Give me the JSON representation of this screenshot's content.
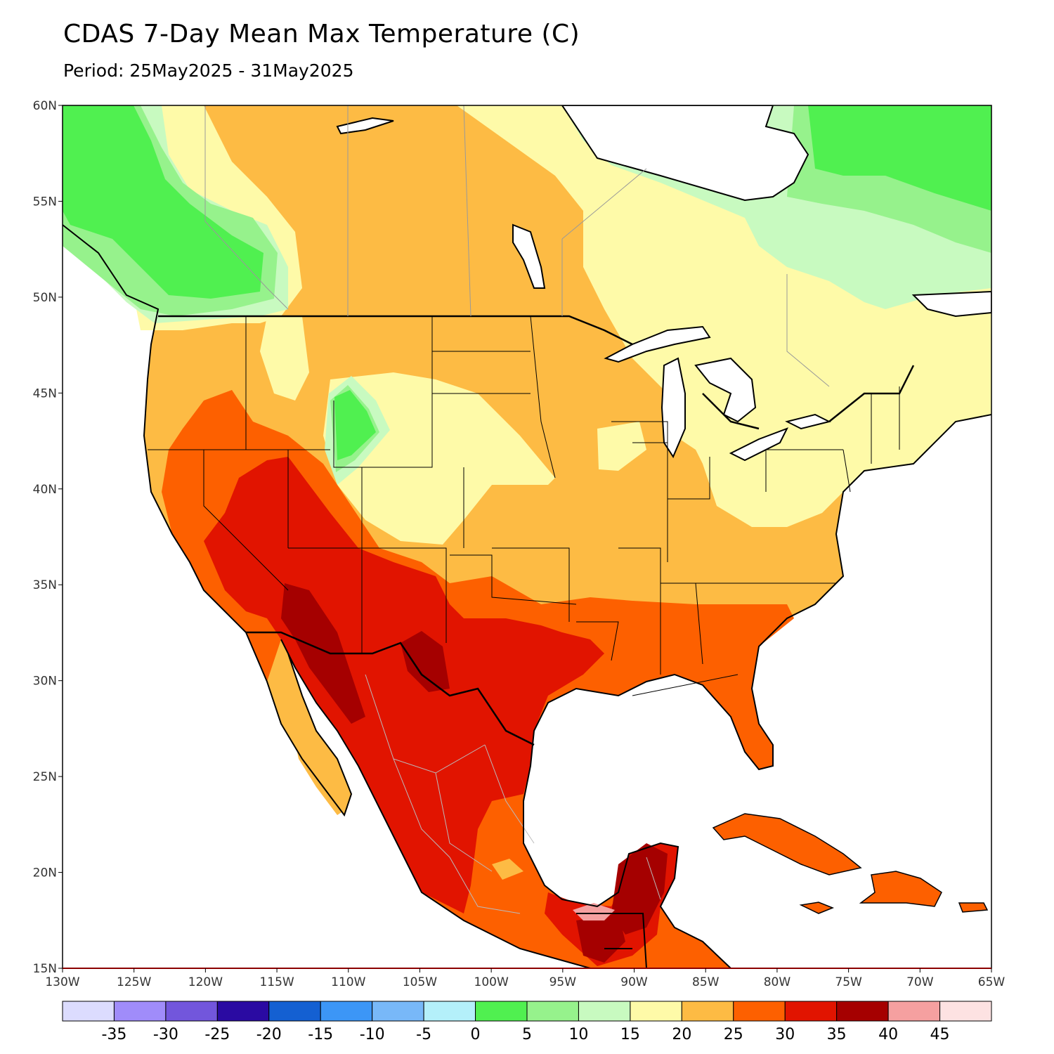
{
  "title": "CDAS 7-Day Mean Max Temperature (C)",
  "subtitle": "Period: 25May2025 - 31May2025",
  "map": {
    "projection": "lat-lon",
    "lon_range": [
      -130,
      -65
    ],
    "lat_range": [
      15,
      60
    ],
    "lat_ticks": [
      {
        "value": 60,
        "label": "60N"
      },
      {
        "value": 55,
        "label": "55N"
      },
      {
        "value": 50,
        "label": "50N"
      },
      {
        "value": 45,
        "label": "45N"
      },
      {
        "value": 40,
        "label": "40N"
      },
      {
        "value": 35,
        "label": "35N"
      },
      {
        "value": 30,
        "label": "30N"
      },
      {
        "value": 25,
        "label": "25N"
      },
      {
        "value": 20,
        "label": "20N"
      },
      {
        "value": 15,
        "label": "15N"
      }
    ],
    "lon_ticks": [
      {
        "value": -130,
        "label": "130W"
      },
      {
        "value": -125,
        "label": "125W"
      },
      {
        "value": -120,
        "label": "120W"
      },
      {
        "value": -115,
        "label": "115W"
      },
      {
        "value": -110,
        "label": "110W"
      },
      {
        "value": -105,
        "label": "105W"
      },
      {
        "value": -100,
        "label": "100W"
      },
      {
        "value": -95,
        "label": "95W"
      },
      {
        "value": -90,
        "label": "90W"
      },
      {
        "value": -85,
        "label": "85W"
      },
      {
        "value": -80,
        "label": "80W"
      },
      {
        "value": -75,
        "label": "75W"
      },
      {
        "value": -70,
        "label": "70W"
      },
      {
        "value": -65,
        "label": "65W"
      }
    ],
    "land_color": "#fdbb44",
    "water_color": "#ffffff"
  },
  "colorbar": {
    "colors": [
      "#dcdcfe",
      "#a08cfa",
      "#7256dc",
      "#2a0aa2",
      "#1460d2",
      "#3c96f6",
      "#78b8f8",
      "#b4f0fa",
      "#50f050",
      "#96f28c",
      "#c8fac0",
      "#fefaa8",
      "#fdbb44",
      "#fd6000",
      "#e11400",
      "#a50000",
      "#f5a0a0",
      "#fde2e2"
    ],
    "labels": [
      "-35",
      "-30",
      "-25",
      "-20",
      "-15",
      "-10",
      "-5",
      "0",
      "5",
      "10",
      "15",
      "20",
      "25",
      "30",
      "35",
      "40",
      "45"
    ]
  }
}
